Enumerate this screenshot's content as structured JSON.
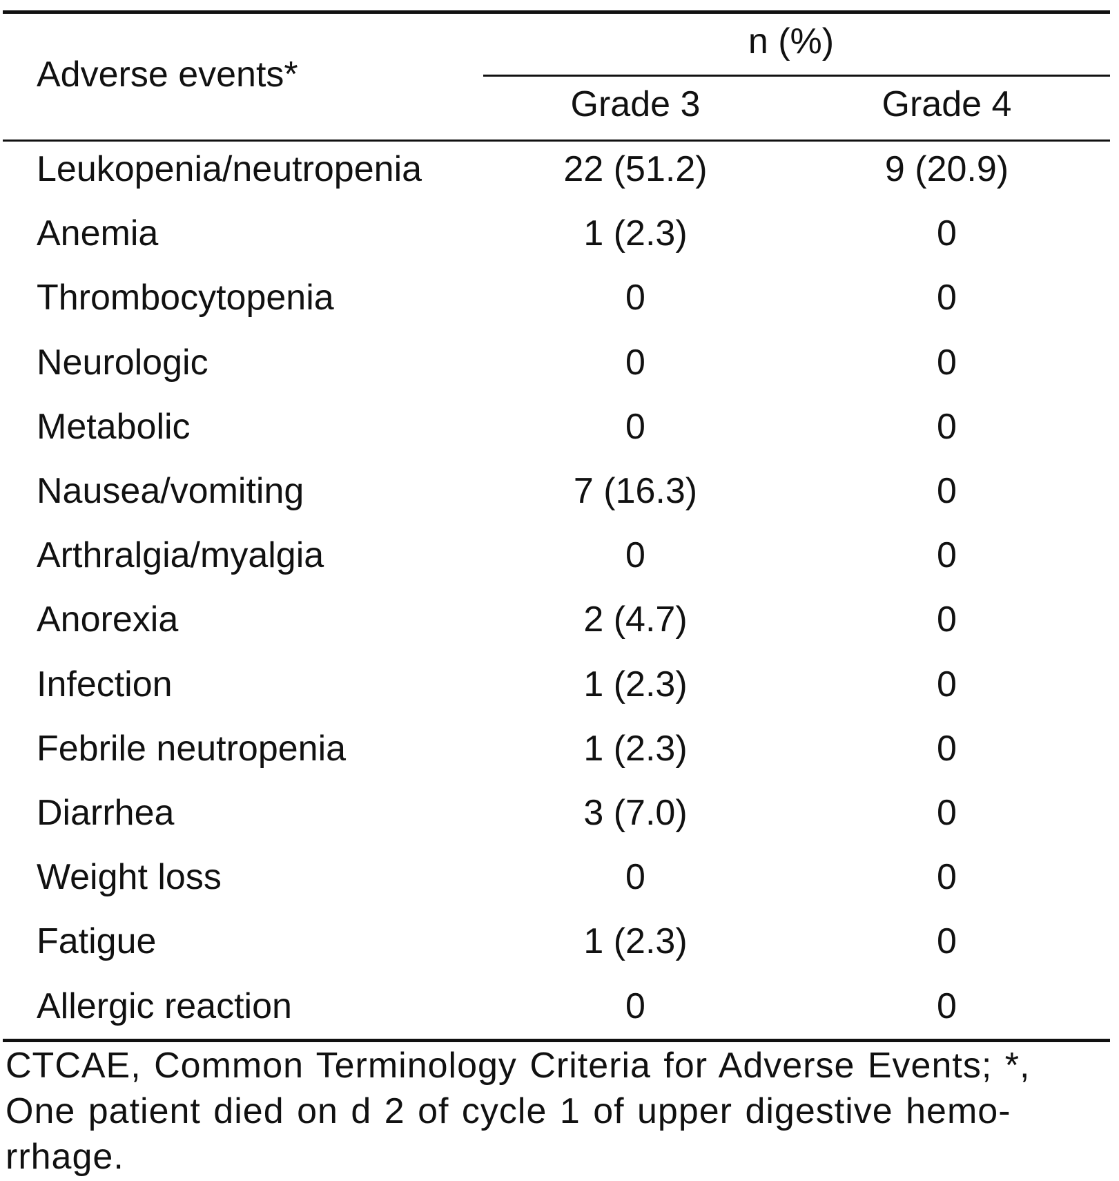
{
  "header": {
    "col_events": "Adverse events*",
    "group_label": "n (%)",
    "col_grade3": "Grade 3",
    "col_grade4": "Grade 4"
  },
  "rows": [
    {
      "event": "Leukopenia/neutropenia",
      "grade3": "22 (51.2)",
      "grade4": "9 (20.9)"
    },
    {
      "event": "Anemia",
      "grade3": "1 (2.3)",
      "grade4": "0"
    },
    {
      "event": "Thrombocytopenia",
      "grade3": "0",
      "grade4": "0"
    },
    {
      "event": "Neurologic",
      "grade3": "0",
      "grade4": "0"
    },
    {
      "event": "Metabolic",
      "grade3": "0",
      "grade4": "0"
    },
    {
      "event": "Nausea/vomiting",
      "grade3": "7 (16.3)",
      "grade4": "0"
    },
    {
      "event": "Arthralgia/myalgia",
      "grade3": "0",
      "grade4": "0"
    },
    {
      "event": "Anorexia",
      "grade3": "2 (4.7)",
      "grade4": "0"
    },
    {
      "event": "Infection",
      "grade3": "1 (2.3)",
      "grade4": "0"
    },
    {
      "event": "Febrile neutropenia",
      "grade3": "1 (2.3)",
      "grade4": "0"
    },
    {
      "event": "Diarrhea",
      "grade3": "3 (7.0)",
      "grade4": "0"
    },
    {
      "event": "Weight loss",
      "grade3": "0",
      "grade4": "0"
    },
    {
      "event": "Fatigue",
      "grade3": "1 (2.3)",
      "grade4": "0"
    },
    {
      "event": "Allergic reaction",
      "grade3": "0",
      "grade4": "0"
    }
  ],
  "footnote": "CTCAE, Common Terminology Criteria for Adverse Events; *, One patient died on d 2 of cycle 1 of upper digestive hemo-rrhage."
}
